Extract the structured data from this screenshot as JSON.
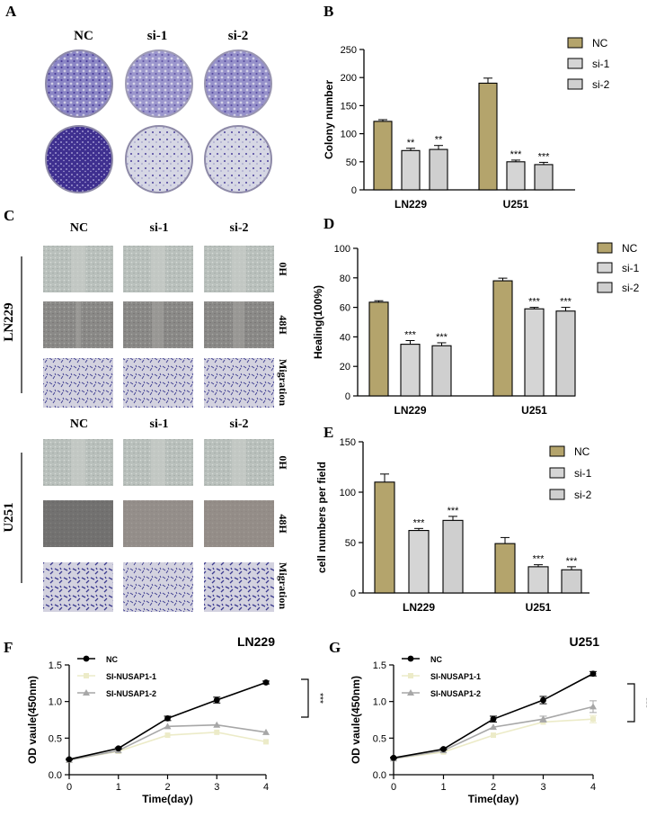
{
  "panel_letters": {
    "A": "A",
    "B": "B",
    "C": "C",
    "D": "D",
    "E": "E",
    "F": "F",
    "G": "G"
  },
  "panel_a": {
    "columns": [
      "NC",
      "si-1",
      "si-2"
    ],
    "dish_colors": {
      "dense": "#3e2f8f",
      "medium": "#6f68b6",
      "sparse": "#cfd0e0",
      "rim": "#8e8aa8"
    }
  },
  "panel_c": {
    "columns_top": [
      "NC",
      "si-1",
      "si-2"
    ],
    "columns_bottom": [
      "NC",
      "si-1",
      "si-2"
    ],
    "cell_lines": [
      "LN229",
      "U251"
    ],
    "row_labels": [
      "0H",
      "48H",
      "Migration"
    ],
    "image_colors": {
      "wound": "#b9c0bc",
      "wound_dark": "#7f7f7c",
      "migration": "#c9c8d8",
      "stain": "#3b3a8f"
    }
  },
  "colors": {
    "nc": "#b4a46c",
    "si1": "#d5d5d5",
    "si2": "#cfcfcf",
    "axis": "#000000",
    "line_nc": "#000000",
    "line_si1": "#ecebc8",
    "line_si2": "#a7a7a7"
  },
  "chart_data": [
    {
      "id": "B",
      "type": "bar",
      "categories": [
        "LN229",
        "U251"
      ],
      "series": [
        {
          "name": "NC",
          "values": [
            122,
            190
          ],
          "errors": [
            3,
            9
          ]
        },
        {
          "name": "si-1",
          "values": [
            70,
            50
          ],
          "errors": [
            4,
            3
          ]
        },
        {
          "name": "si-2",
          "values": [
            72,
            45
          ],
          "errors": [
            7,
            4
          ]
        }
      ],
      "annotations": [
        [
          "",
          "**",
          "**"
        ],
        [
          "",
          "***",
          "***"
        ]
      ],
      "xlabel": "",
      "ylabel": "Colony number",
      "ylim": [
        0,
        250
      ],
      "yticks": [
        0,
        50,
        100,
        150,
        200,
        250
      ],
      "legend": "top-right"
    },
    {
      "id": "D",
      "type": "bar",
      "categories": [
        "LN229",
        "U251"
      ],
      "series": [
        {
          "name": "NC",
          "values": [
            63.5,
            78
          ],
          "errors": [
            1,
            1.8
          ]
        },
        {
          "name": "si-1",
          "values": [
            35,
            59
          ],
          "errors": [
            2.5,
            1
          ]
        },
        {
          "name": "si-2",
          "values": [
            34,
            57.5
          ],
          "errors": [
            2,
            2.5
          ]
        }
      ],
      "annotations": [
        [
          "",
          "***",
          "***"
        ],
        [
          "",
          "***",
          "***"
        ]
      ],
      "xlabel": "",
      "ylabel": "Healing(100%)",
      "ylim": [
        0,
        100
      ],
      "yticks": [
        0,
        20,
        40,
        60,
        80,
        100
      ],
      "legend": "top-right"
    },
    {
      "id": "E",
      "type": "bar",
      "categories": [
        "LN229",
        "U251"
      ],
      "series": [
        {
          "name": "NC",
          "values": [
            110,
            49
          ],
          "errors": [
            8,
            6
          ]
        },
        {
          "name": "si-1",
          "values": [
            62,
            26
          ],
          "errors": [
            2,
            2
          ]
        },
        {
          "name": "si-2",
          "values": [
            72,
            23
          ],
          "errors": [
            4,
            3
          ]
        }
      ],
      "annotations": [
        [
          "",
          "***",
          "***"
        ],
        [
          "",
          "***",
          "***"
        ]
      ],
      "xlabel": "",
      "ylabel": "cell numbers per field",
      "ylim": [
        0,
        150
      ],
      "yticks": [
        0,
        50,
        100,
        150
      ],
      "legend": "top-right"
    },
    {
      "id": "F",
      "type": "line",
      "title": "LN229",
      "x": [
        0,
        1,
        2,
        3,
        4
      ],
      "series": [
        {
          "name": "NC",
          "values": [
            0.21,
            0.36,
            0.77,
            1.02,
            1.26
          ],
          "errors": [
            0.01,
            0.01,
            0.03,
            0.04,
            0.02
          ],
          "marker": "circle"
        },
        {
          "name": "SI-NUSAP1-1",
          "values": [
            0.2,
            0.32,
            0.54,
            0.58,
            0.45
          ],
          "errors": [
            0,
            0,
            0,
            0,
            0
          ],
          "marker": "square"
        },
        {
          "name": "SI-NUSAP1-2",
          "values": [
            0.2,
            0.33,
            0.66,
            0.68,
            0.58
          ],
          "errors": [
            0,
            0,
            0,
            0,
            0
          ],
          "marker": "triangle"
        }
      ],
      "significance": "***",
      "xlabel": "Time(day)",
      "ylabel": "OD vaule(450nm)",
      "xlim": [
        0,
        4
      ],
      "ylim": [
        0,
        1.5
      ],
      "xticks": [
        0,
        1,
        2,
        3,
        4
      ],
      "yticks": [
        "0.0",
        "0.5",
        "1.0",
        "1.5"
      ],
      "legend": "top-left"
    },
    {
      "id": "G",
      "type": "line",
      "title": "U251",
      "x": [
        0,
        1,
        2,
        3,
        4
      ],
      "series": [
        {
          "name": "NC",
          "values": [
            0.23,
            0.35,
            0.76,
            1.02,
            1.38
          ],
          "errors": [
            0.01,
            0.01,
            0.04,
            0.05,
            0.03
          ],
          "marker": "circle"
        },
        {
          "name": "SI-NUSAP1-1",
          "values": [
            0.22,
            0.31,
            0.54,
            0.72,
            0.76
          ],
          "errors": [
            0,
            0,
            0,
            0,
            0.05
          ],
          "marker": "square"
        },
        {
          "name": "SI-NUSAP1-2",
          "values": [
            0.22,
            0.33,
            0.65,
            0.76,
            0.93
          ],
          "errors": [
            0,
            0,
            0,
            0.04,
            0.08
          ],
          "marker": "triangle"
        }
      ],
      "significance": "***",
      "xlabel": "Time(day)",
      "ylabel": "OD vaule(450nm)",
      "xlim": [
        0,
        4
      ],
      "ylim": [
        0,
        1.5
      ],
      "xticks": [
        0,
        1,
        2,
        3,
        4
      ],
      "yticks": [
        "0.0",
        "0.5",
        "1.0",
        "1.5"
      ],
      "legend": "top-left"
    }
  ]
}
